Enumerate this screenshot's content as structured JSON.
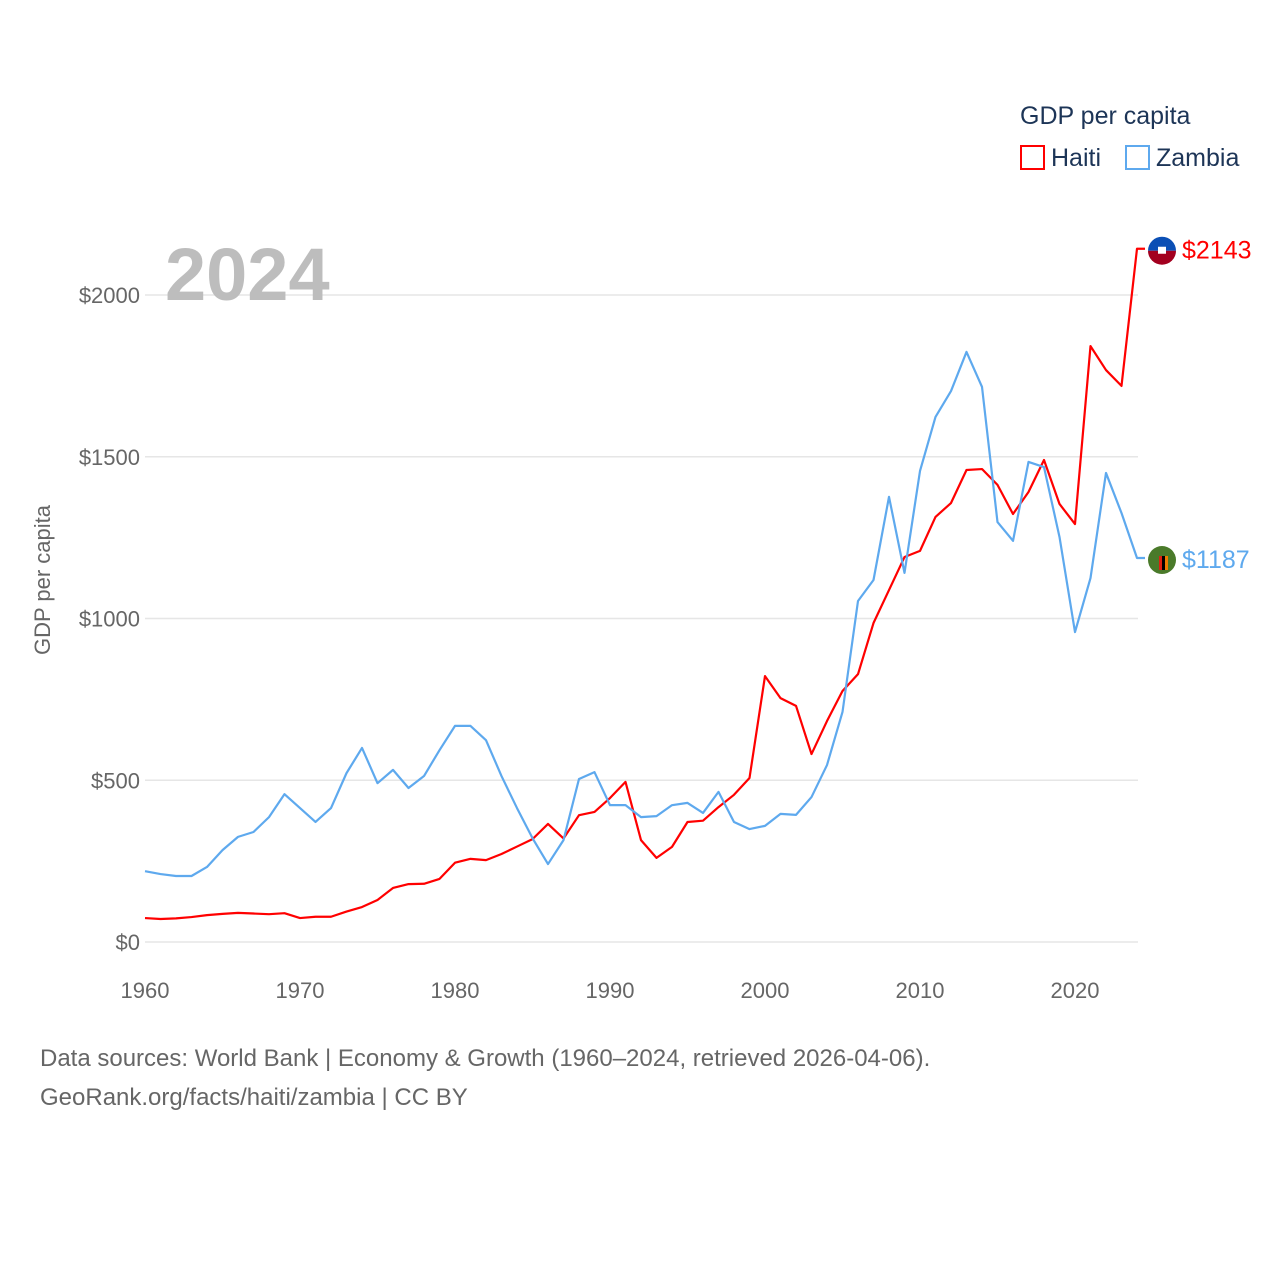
{
  "chart_data": {
    "type": "line",
    "title": "",
    "year_watermark": "2024",
    "xlabel": "",
    "ylabel": "GDP per capita",
    "xlim": [
      1960,
      2024
    ],
    "ylim": [
      0,
      2000
    ],
    "x_ticks": [
      1960,
      1970,
      1980,
      1990,
      2000,
      2010,
      2020
    ],
    "x_tick_labels": [
      "1960",
      "1970",
      "1980",
      "1990",
      "2000",
      "2010",
      "2020"
    ],
    "y_ticks": [
      0,
      500,
      1000,
      1500,
      2000
    ],
    "y_tick_labels": [
      "$0",
      "$500",
      "$1000",
      "$1500",
      "$2000"
    ],
    "grid": true,
    "legend": {
      "title": "GDP per capita",
      "placement": "top-right"
    },
    "x": [
      1960,
      1961,
      1962,
      1963,
      1964,
      1965,
      1966,
      1967,
      1968,
      1969,
      1970,
      1971,
      1972,
      1973,
      1974,
      1975,
      1976,
      1977,
      1978,
      1979,
      1980,
      1981,
      1982,
      1983,
      1984,
      1985,
      1986,
      1987,
      1988,
      1989,
      1990,
      1991,
      1992,
      1993,
      1994,
      1995,
      1996,
      1997,
      1998,
      1999,
      2000,
      2001,
      2002,
      2003,
      2004,
      2005,
      2006,
      2007,
      2008,
      2009,
      2010,
      2011,
      2012,
      2013,
      2014,
      2015,
      2016,
      2017,
      2018,
      2019,
      2020,
      2021,
      2022,
      2023,
      2024
    ],
    "series": [
      {
        "name": "Haiti",
        "color": "#ff0000",
        "end_label": "$2143",
        "flag": "haiti-flag",
        "values": [
          74,
          71,
          73,
          77,
          83,
          87,
          90,
          88,
          86,
          89,
          74,
          78,
          78,
          94,
          108,
          130,
          167,
          179,
          180,
          195,
          245,
          257,
          253,
          272,
          295,
          318,
          365,
          320,
          392,
          402,
          445,
          495,
          315,
          260,
          294,
          371,
          375,
          417,
          455,
          507,
          822,
          754,
          730,
          581,
          683,
          776,
          828,
          986,
          1088,
          1190,
          1209,
          1314,
          1357,
          1459,
          1462,
          1413,
          1323,
          1391,
          1490,
          1354,
          1292,
          1842,
          1768,
          1719,
          2143
        ]
      },
      {
        "name": "Zambia",
        "color": "#5ea9ee",
        "end_label": "$1187",
        "flag": "zambia-flag",
        "values": [
          219,
          210,
          204,
          204,
          232,
          284,
          325,
          340,
          386,
          457,
          414,
          371,
          414,
          522,
          600,
          491,
          532,
          476,
          513,
          593,
          668,
          668,
          624,
          513,
          414,
          321,
          241,
          315,
          504,
          525,
          423,
          423,
          386,
          389,
          423,
          430,
          399,
          464,
          371,
          349,
          359,
          396,
          393,
          448,
          547,
          711,
          1054,
          1119,
          1376,
          1141,
          1456,
          1623,
          1703,
          1824,
          1716,
          1298,
          1240,
          1484,
          1468,
          1252,
          958,
          1125,
          1450,
          1326,
          1187
        ]
      }
    ]
  },
  "footer": {
    "line1": "Data sources: World Bank | Economy & Growth (1960–2024, retrieved 2026-04-06).",
    "line2": "GeoRank.org/facts/haiti/zambia | CC BY"
  }
}
